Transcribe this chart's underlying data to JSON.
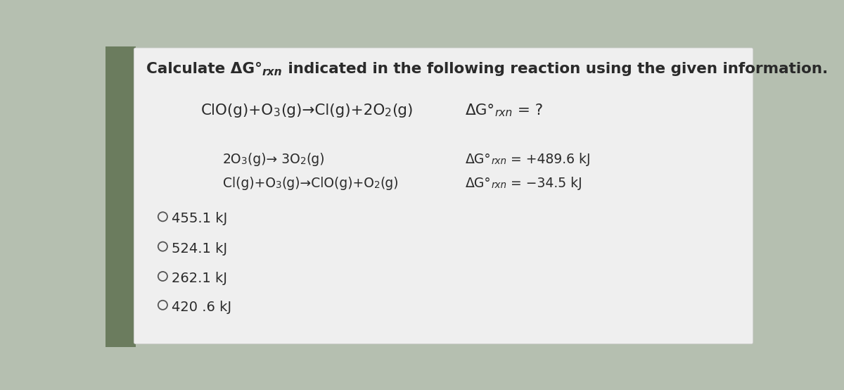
{
  "outer_bg": "#b5bfb0",
  "card_bg": "#efefef",
  "left_strip_color": "#6b7c5e",
  "text_color": "#2a2a2a",
  "title_prefix": "Calculate ΔG°",
  "title_rxn": "rxn",
  "title_suffix": " indicated in the following reaction using the given information.",
  "main_rxn_left": "ClO(g) + O",
  "main_rxn_mid": "3",
  "main_rxn_right": "(g) → Cl(g) + 2O",
  "main_rxn_end": "2",
  "main_rxn_tail": "(g)",
  "q_prefix": "ΔG°",
  "q_rxn": "rxn",
  "q_suffix": " = ?",
  "g1_left": "2O",
  "g1_sub": "3",
  "g1_right": "(g) → 3O",
  "g1_sub2": "2",
  "g1_tail": "(g)",
  "g2_left": "Cl(g) + O",
  "g2_sub": "3",
  "g2_right": "(g) → ClO(g) + O",
  "g2_sub2": "2",
  "g2_tail": "(g)",
  "v1_prefix": "ΔG°",
  "v1_rxn": "rxn",
  "v1_suffix": " = +489.6 kJ",
  "v2_prefix": "ΔG°",
  "v2_rxn": "rxn",
  "v2_suffix": " = −34.5 kJ",
  "choices": [
    "455.1 kJ",
    "524.1 kJ",
    "262.1 kJ",
    "420 .6 kJ"
  ],
  "title_fontsize": 15.5,
  "body_fontsize": 14.5,
  "small_fontsize": 13.5,
  "choice_fontsize": 14.0
}
